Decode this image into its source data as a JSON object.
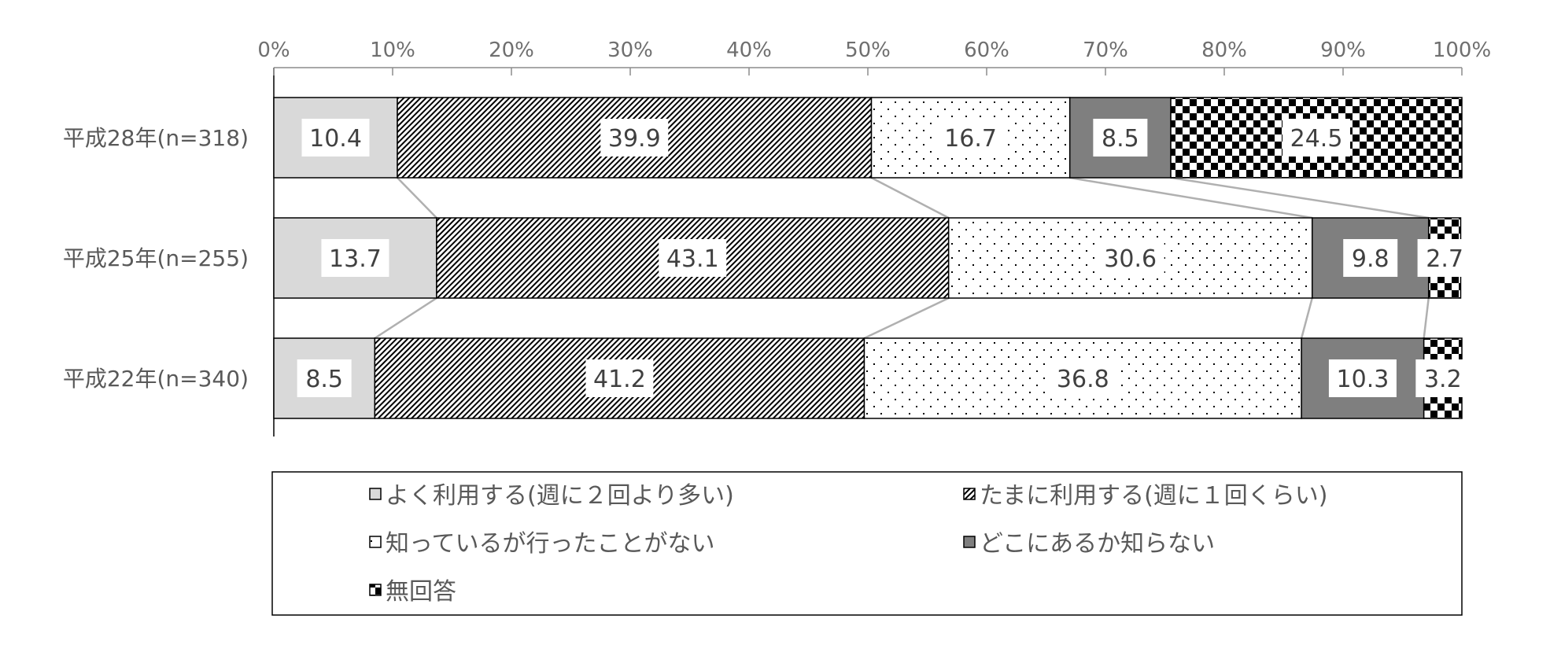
{
  "chart_data": {
    "type": "bar",
    "orientation": "horizontal",
    "stacked": "100%",
    "categories": [
      "平成28年(n=318)",
      "平成25年(n=255)",
      "平成22年(n=340)"
    ],
    "series": [
      {
        "name": "よく利用する(週に２回より多い)",
        "values": [
          10.4,
          13.7,
          8.5
        ],
        "pattern": "solid-light",
        "color": "#d9d9d9"
      },
      {
        "name": "たまに利用する(週に１回くらい)",
        "values": [
          39.9,
          43.1,
          41.2
        ],
        "pattern": "diagonal-hatch",
        "color": "#000000"
      },
      {
        "name": "知っているが行ったことがない",
        "values": [
          16.7,
          30.6,
          36.8
        ],
        "pattern": "dots",
        "color": "#ffffff"
      },
      {
        "name": "どこにあるか知らない",
        "values": [
          8.5,
          9.8,
          10.3
        ],
        "pattern": "solid-dark",
        "color": "#7f7f7f"
      },
      {
        "name": "無回答",
        "values": [
          24.5,
          2.7,
          3.2
        ],
        "pattern": "checker",
        "color": "#000000"
      }
    ],
    "data_labels": [
      [
        "10.4",
        "39.9",
        "16.7",
        "8.5",
        "24.5"
      ],
      [
        "13.7",
        "43.1",
        "30.6",
        "9.8",
        "2.7"
      ],
      [
        "8.5",
        "41.2",
        "36.8",
        "10.3",
        "3.2"
      ]
    ],
    "xlim": [
      0,
      100
    ],
    "x_ticks": [
      "0%",
      "10%",
      "20%",
      "30%",
      "40%",
      "50%",
      "60%",
      "70%",
      "80%",
      "90%",
      "100%"
    ],
    "series_lines": true,
    "legend_position": "bottom",
    "grid": false
  }
}
